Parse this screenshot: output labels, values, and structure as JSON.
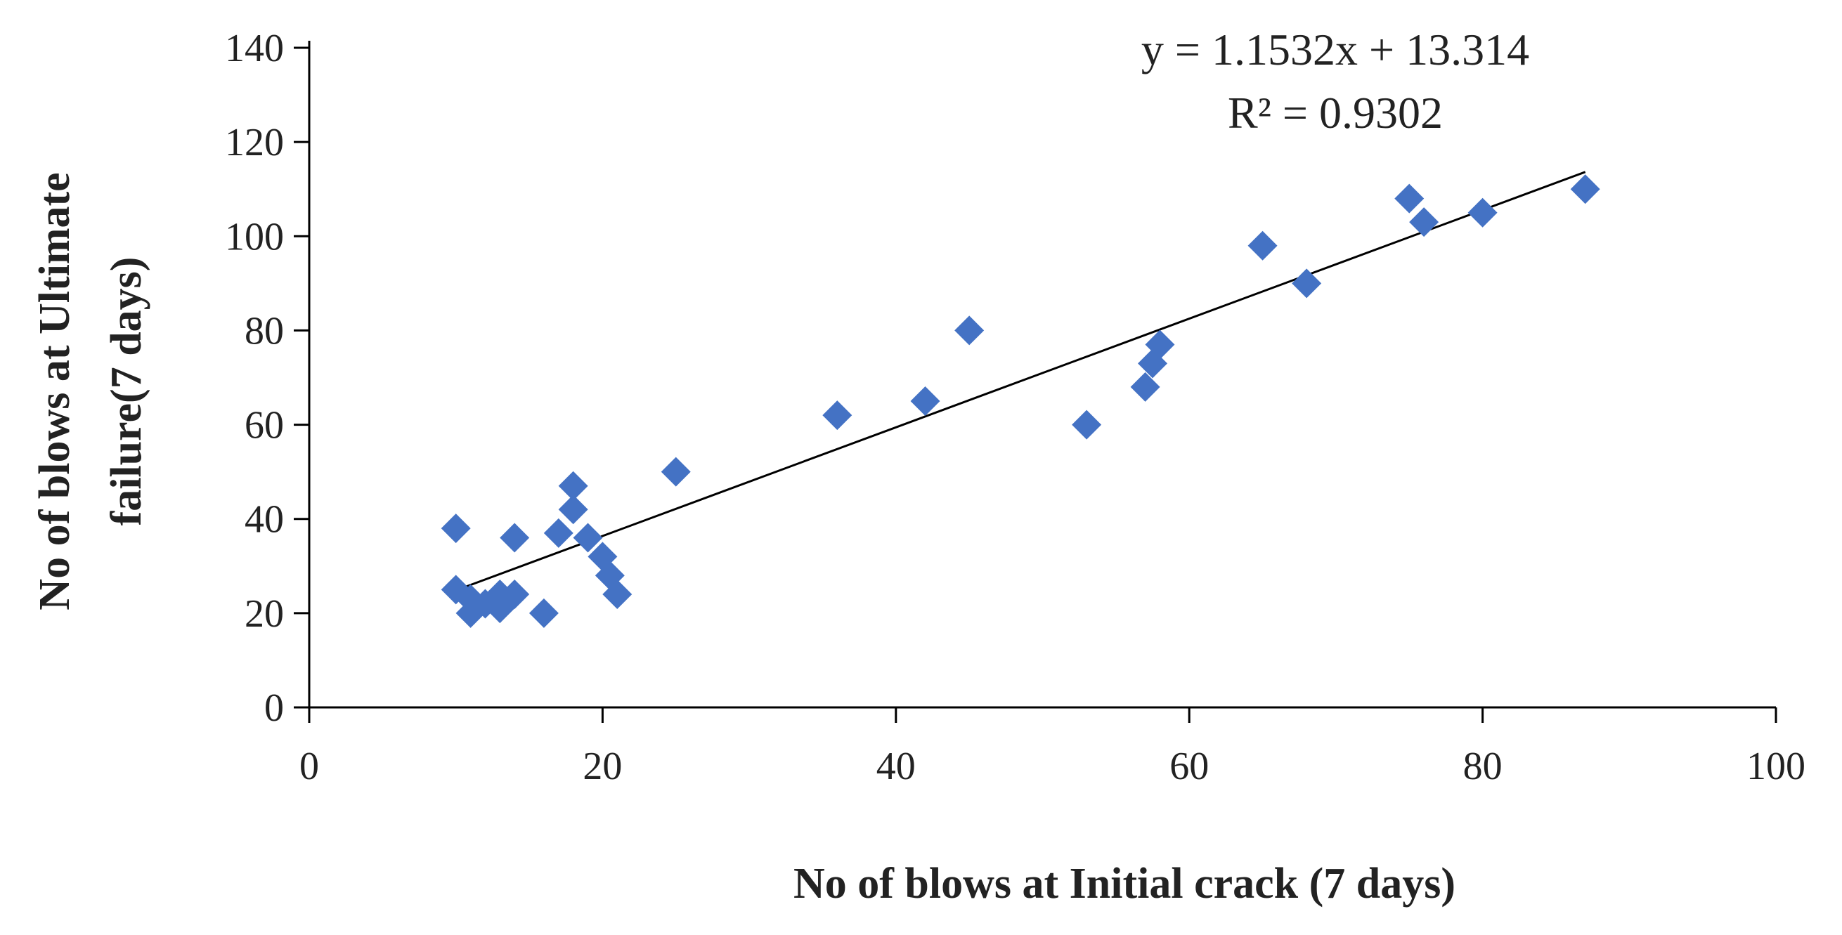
{
  "chart_data": {
    "type": "scatter",
    "xlabel": "No of blows at Initial crack (7 days)",
    "ylabel_lines": [
      "No of blows at Ultimate",
      "failure(7 days)"
    ],
    "xlim": [
      0,
      100
    ],
    "ylim": [
      0,
      140
    ],
    "x_ticks": [
      "0",
      "20",
      "40",
      "60",
      "80",
      "100"
    ],
    "y_ticks": [
      "0",
      "20",
      "40",
      "60",
      "80",
      "100",
      "120",
      "140"
    ],
    "grid": false,
    "marker": "diamond",
    "marker_color": "#4472C4",
    "trendline_color": "#000000",
    "series": [
      {
        "x": [
          10,
          10,
          11,
          11,
          12,
          13,
          13,
          14,
          14,
          16,
          17,
          18,
          18,
          19,
          20,
          20.5,
          21,
          25,
          36,
          42,
          45,
          53,
          57,
          57.5,
          58,
          65,
          68,
          75,
          76,
          80,
          87
        ],
        "y": [
          38,
          25,
          20,
          23,
          22,
          24,
          21,
          24,
          36,
          20,
          37,
          42,
          47,
          36,
          32,
          28,
          24,
          50,
          62,
          65,
          80,
          60,
          68,
          73,
          77,
          98,
          90,
          108,
          103,
          105,
          110
        ]
      }
    ],
    "trendline": {
      "slope": 1.1532,
      "intercept": 13.314,
      "x_range": [
        10,
        87
      ],
      "equation": "y = 1.1532x + 13.314",
      "r2": "R² = 0.9302"
    }
  }
}
